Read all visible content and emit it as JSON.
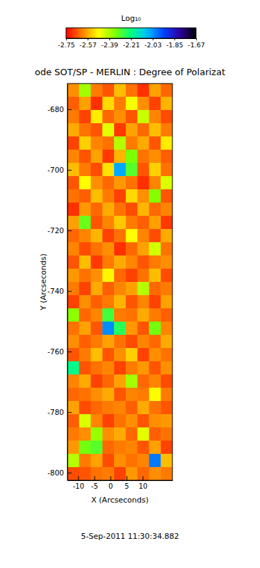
{
  "chart_data": {
    "type": "heatmap",
    "title": "ode SOT/SP - MERLIN : Degree of Polarizat",
    "x_label": "X (Arcseconds)",
    "y_label": "Y (Arcseconds)",
    "date": "5-Sep-2011 11:30:34.882",
    "xlim": [
      -13.3,
      19.2
    ],
    "xticks": [
      -10,
      -5,
      0,
      5,
      10
    ],
    "ylim": [
      -671.5,
      -802.5
    ],
    "yticks": [
      -680,
      -700,
      -720,
      -740,
      -760,
      -780,
      -800
    ],
    "colorbar_label": "Log₁₀",
    "colorbar_range": [
      -2.75,
      -1.67
    ],
    "colorbar_ticks": [
      -2.75,
      -2.57,
      -2.39,
      -2.21,
      -2.03,
      -1.85,
      -1.67
    ],
    "z": [
      [
        -2.6,
        -2.38,
        -2.62,
        -2.66,
        -2.55,
        -2.63,
        -2.7,
        -2.58,
        -2.64
      ],
      [
        -2.65,
        -2.58,
        -2.7,
        -2.52,
        -2.62,
        -2.47,
        -2.6,
        -2.68,
        -2.56
      ],
      [
        -2.62,
        -2.68,
        -2.5,
        -2.64,
        -2.6,
        -2.66,
        -2.42,
        -2.61,
        -2.67
      ],
      [
        -2.57,
        -2.63,
        -2.66,
        -2.45,
        -2.69,
        -2.58,
        -2.64,
        -2.55,
        -2.62
      ],
      [
        -2.68,
        -2.53,
        -2.61,
        -2.63,
        -2.4,
        -2.62,
        -2.57,
        -2.66,
        -2.5
      ],
      [
        -2.61,
        -2.66,
        -2.58,
        -2.69,
        -2.56,
        -2.34,
        -2.63,
        -2.6,
        -2.65
      ],
      [
        -2.55,
        -2.62,
        -2.67,
        -2.51,
        -2.05,
        -2.3,
        -2.66,
        -2.53,
        -2.63
      ],
      [
        -2.66,
        -2.48,
        -2.6,
        -2.64,
        -2.59,
        -2.63,
        -2.7,
        -2.61,
        -2.44
      ],
      [
        -2.63,
        -2.65,
        -2.55,
        -2.62,
        -2.68,
        -2.52,
        -2.6,
        -2.35,
        -2.66
      ],
      [
        -2.7,
        -2.59,
        -2.64,
        -2.57,
        -2.63,
        -2.67,
        -2.56,
        -2.64,
        -2.61
      ],
      [
        -2.58,
        -2.32,
        -2.66,
        -2.61,
        -2.54,
        -2.62,
        -2.65,
        -2.58,
        -2.69
      ],
      [
        -2.64,
        -2.61,
        -2.56,
        -2.68,
        -2.63,
        -2.48,
        -2.61,
        -2.67,
        -2.57
      ],
      [
        -2.61,
        -2.67,
        -2.63,
        -2.6,
        -2.7,
        -2.64,
        -2.58,
        -2.43,
        -2.63
      ],
      [
        -2.66,
        -2.55,
        -2.69,
        -2.62,
        -2.57,
        -2.61,
        -2.66,
        -2.62,
        -2.6
      ],
      [
        -2.59,
        -2.63,
        -2.6,
        -2.49,
        -2.64,
        -2.68,
        -2.63,
        -2.55,
        -2.67
      ],
      [
        -2.62,
        -2.68,
        -2.57,
        -2.65,
        -2.61,
        -2.58,
        -2.4,
        -2.64,
        -2.62
      ],
      [
        -2.68,
        -2.6,
        -2.65,
        -2.62,
        -2.56,
        -2.66,
        -2.61,
        -2.68,
        -2.58
      ],
      [
        -2.36,
        -2.64,
        -2.61,
        -2.28,
        -2.62,
        -2.63,
        -2.57,
        -2.62,
        -2.65
      ],
      [
        -2.63,
        -2.58,
        -2.66,
        -2.02,
        -2.25,
        -2.59,
        -2.66,
        -2.33,
        -2.61
      ],
      [
        -2.6,
        -2.65,
        -2.62,
        -2.58,
        -2.63,
        -2.67,
        -2.61,
        -2.64,
        -2.57
      ],
      [
        -2.66,
        -2.62,
        -2.55,
        -2.66,
        -2.6,
        -2.53,
        -2.68,
        -2.6,
        -2.63
      ],
      [
        -2.2,
        -2.66,
        -2.63,
        -2.61,
        -2.68,
        -2.62,
        -2.59,
        -2.66,
        -2.6
      ],
      [
        -2.61,
        -2.57,
        -2.68,
        -2.64,
        -2.58,
        -2.38,
        -2.64,
        -2.61,
        -2.67
      ],
      [
        -2.64,
        -2.63,
        -2.6,
        -2.57,
        -2.66,
        -2.61,
        -2.62,
        -2.48,
        -2.62
      ],
      [
        -2.58,
        -2.67,
        -2.64,
        -2.62,
        -2.61,
        -2.65,
        -2.57,
        -2.63,
        -2.66
      ],
      [
        -2.65,
        -2.44,
        -2.61,
        -2.68,
        -2.63,
        -2.6,
        -2.66,
        -2.6,
        -2.59
      ],
      [
        -2.62,
        -2.6,
        -2.37,
        -2.6,
        -2.57,
        -2.64,
        -2.45,
        -2.65,
        -2.63
      ],
      [
        -2.59,
        -2.33,
        -2.3,
        -2.64,
        -2.62,
        -2.61,
        -2.66,
        -2.58,
        -2.68
      ],
      [
        -2.4,
        -2.62,
        -2.58,
        -2.67,
        -2.6,
        -2.63,
        -2.61,
        -2.0,
        -2.55
      ],
      [
        -2.67,
        -2.66,
        -2.63,
        -2.62,
        -2.68,
        -2.59,
        -2.64,
        -2.6,
        -2.62
      ]
    ]
  }
}
